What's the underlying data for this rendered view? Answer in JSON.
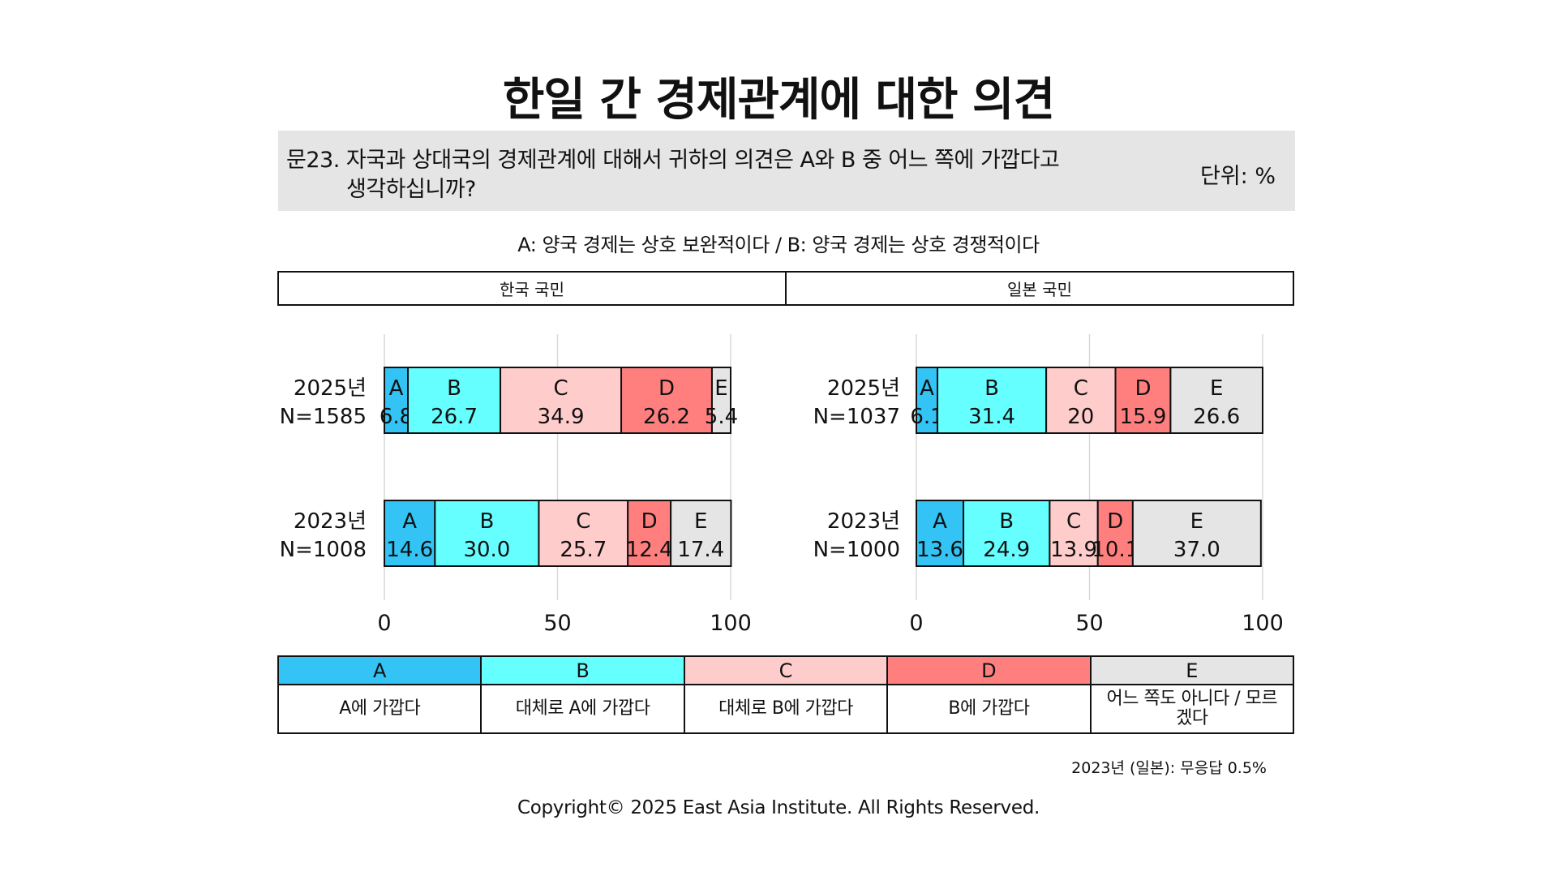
{
  "title": "한일 간 경제관계에 대한 의견",
  "question": {
    "line1": "문23. 자국과 상대국의 경제관계에 대해서 귀하의 의견은 A와 B 중 어느 쪽에 가깝다고",
    "line2": "생각하십니까?",
    "unit": "단위: %"
  },
  "definition": "A: 양국 경제는 상호 보완적이다 / B: 양국 경제는 상호 경쟁적이다",
  "groups": [
    "한국 국민",
    "일본 국민"
  ],
  "colors": {
    "A": "#33c3f4",
    "B": "#66ffff",
    "C": "#ffcccc",
    "D": "#ff7f7f",
    "E": "#e5e5e5"
  },
  "chart_data": [
    {
      "type": "bar",
      "orientation": "horizontal-stacked",
      "group": "한국 국민",
      "categories": [
        {
          "year": "2025년",
          "n": "N=1585"
        },
        {
          "year": "2023년",
          "n": "N=1008"
        }
      ],
      "segment_keys": [
        "A",
        "B",
        "C",
        "D",
        "E"
      ],
      "series": [
        {
          "name": "A",
          "values": [
            6.8,
            14.6
          ],
          "labels": [
            "6.8",
            "14.6"
          ]
        },
        {
          "name": "B",
          "values": [
            26.7,
            30.0
          ],
          "labels": [
            "26.7",
            "30.0"
          ]
        },
        {
          "name": "C",
          "values": [
            34.9,
            25.7
          ],
          "labels": [
            "34.9",
            "25.7"
          ]
        },
        {
          "name": "D",
          "values": [
            26.2,
            12.4
          ],
          "labels": [
            "26.2",
            "12.4"
          ]
        },
        {
          "name": "E",
          "values": [
            5.4,
            17.4
          ],
          "labels": [
            "5.4",
            "17.4"
          ]
        }
      ],
      "xlim": [
        0,
        100
      ],
      "xticks": [
        "0",
        "50",
        "100"
      ],
      "grid": true
    },
    {
      "type": "bar",
      "orientation": "horizontal-stacked",
      "group": "일본 국민",
      "categories": [
        {
          "year": "2025년",
          "n": "N=1037"
        },
        {
          "year": "2023년",
          "n": "N=1000"
        }
      ],
      "segment_keys": [
        "A",
        "B",
        "C",
        "D",
        "E"
      ],
      "series": [
        {
          "name": "A",
          "values": [
            6.1,
            13.6
          ],
          "labels": [
            "6.1",
            "13.6"
          ]
        },
        {
          "name": "B",
          "values": [
            31.4,
            24.9
          ],
          "labels": [
            "31.4",
            "24.9"
          ]
        },
        {
          "name": "C",
          "values": [
            20,
            13.9
          ],
          "labels": [
            "20",
            "13.9"
          ]
        },
        {
          "name": "D",
          "values": [
            15.9,
            10.1
          ],
          "labels": [
            "15.9",
            "10.1"
          ]
        },
        {
          "name": "E",
          "values": [
            26.6,
            37.0
          ],
          "labels": [
            "26.6",
            "37.0"
          ]
        }
      ],
      "xlim": [
        0,
        100
      ],
      "xticks": [
        "0",
        "50",
        "100"
      ],
      "grid": true
    }
  ],
  "legend": [
    {
      "key": "A",
      "desc": "A에 가깝다"
    },
    {
      "key": "B",
      "desc": "대체로 A에 가깝다"
    },
    {
      "key": "C",
      "desc": "대체로 B에 가깝다"
    },
    {
      "key": "D",
      "desc": "B에 가깝다"
    },
    {
      "key": "E",
      "desc": "어느 쪽도 아니다 / 모르겠다"
    }
  ],
  "note": "2023년 (일본): 무응답 0.5%",
  "copyright": "Copyright© 2025 East Asia Institute. All Rights Reserved."
}
